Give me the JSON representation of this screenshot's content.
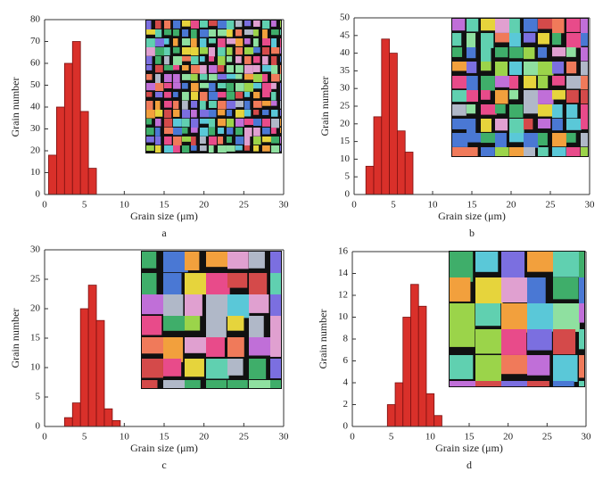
{
  "chart_data": [
    {
      "type": "histogram",
      "caption": "a",
      "x_label": "Grain size (μm)",
      "y_label": "Grain number",
      "bins": [
        0.5,
        1.5,
        2.5,
        3.5,
        4.5,
        5.5,
        6.5
      ],
      "values": [
        18,
        40,
        60,
        70,
        38,
        12
      ],
      "color": "#d9302a",
      "xlim": [
        0,
        30
      ],
      "xticks": [
        0,
        5,
        10,
        15,
        20,
        25,
        30
      ],
      "ylim": [
        0,
        80
      ],
      "yticks": [
        0,
        10,
        20,
        30,
        40,
        50,
        60,
        70,
        80
      ]
    },
    {
      "type": "histogram",
      "caption": "b",
      "x_label": "Grain size (μm)",
      "y_label": "Grain number",
      "bins": [
        1.5,
        2.5,
        3.5,
        4.5,
        5.5,
        6.5,
        7.5
      ],
      "values": [
        8,
        22,
        44,
        40,
        18,
        12
      ],
      "color": "#d9302a",
      "xlim": [
        0,
        30
      ],
      "xticks": [
        0,
        5,
        10,
        15,
        20,
        25,
        30
      ],
      "ylim": [
        0,
        50
      ],
      "yticks": [
        0,
        5,
        10,
        15,
        20,
        25,
        30,
        35,
        40,
        45,
        50
      ]
    },
    {
      "type": "histogram",
      "caption": "c",
      "x_label": "Grain size (μm)",
      "y_label": "Grain number",
      "bins": [
        2.5,
        3.5,
        4.5,
        5.5,
        6.5,
        7.5,
        8.5,
        9.5
      ],
      "values": [
        1.5,
        4,
        20,
        24,
        18,
        3,
        1
      ],
      "color": "#d9302a",
      "xlim": [
        0,
        30
      ],
      "xticks": [
        0,
        5,
        10,
        15,
        20,
        25,
        30
      ],
      "ylim": [
        0,
        30
      ],
      "yticks": [
        0,
        5,
        10,
        15,
        20,
        25,
        30
      ]
    },
    {
      "type": "histogram",
      "caption": "d",
      "x_label": "Grain size (μm)",
      "y_label": "Grain number",
      "bins": [
        4.5,
        5.5,
        6.5,
        7.5,
        8.5,
        9.5,
        10.5,
        11.5
      ],
      "values": [
        2,
        4,
        10,
        13,
        11,
        3,
        1
      ],
      "color": "#d9302a",
      "xlim": [
        0,
        30
      ],
      "xticks": [
        0,
        5,
        10,
        15,
        20,
        25,
        30
      ],
      "ylim": [
        0,
        16
      ],
      "yticks": [
        0,
        2,
        4,
        6,
        8,
        10,
        12,
        14,
        16
      ]
    }
  ]
}
